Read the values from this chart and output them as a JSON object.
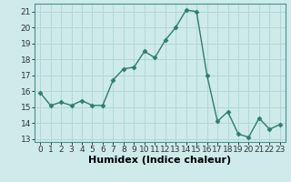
{
  "x": [
    0,
    1,
    2,
    3,
    4,
    5,
    6,
    7,
    8,
    9,
    10,
    11,
    12,
    13,
    14,
    15,
    16,
    17,
    18,
    19,
    20,
    21,
    22,
    23
  ],
  "y": [
    15.9,
    15.1,
    15.3,
    15.1,
    15.4,
    15.1,
    15.1,
    16.7,
    17.4,
    17.5,
    18.5,
    18.1,
    19.2,
    20.0,
    21.1,
    21.0,
    17.0,
    14.1,
    14.7,
    13.3,
    13.1,
    14.3,
    13.6,
    13.9
  ],
  "line_color": "#2e7d6e",
  "marker": "D",
  "markersize": 2.5,
  "linewidth": 1.0,
  "xlabel": "Humidex (Indice chaleur)",
  "xlabel_fontsize": 8,
  "bg_color": "#ceeaea",
  "grid_color": "#b0d8d8",
  "ylim": [
    12.8,
    21.5
  ],
  "yticks": [
    13,
    14,
    15,
    16,
    17,
    18,
    19,
    20,
    21
  ],
  "xticks": [
    0,
    1,
    2,
    3,
    4,
    5,
    6,
    7,
    8,
    9,
    10,
    11,
    12,
    13,
    14,
    15,
    16,
    17,
    18,
    19,
    20,
    21,
    22,
    23
  ],
  "tick_fontsize": 6.5,
  "spine_color": "#4a9090"
}
